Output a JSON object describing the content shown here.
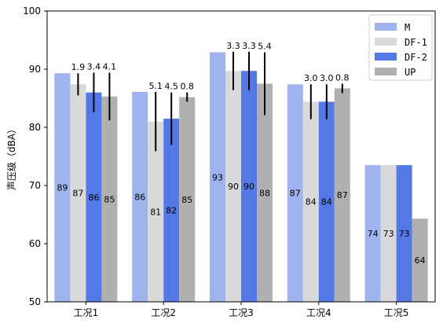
{
  "chart_data": {
    "type": "bar",
    "title": "",
    "xlabel": "",
    "ylabel": "声压级（dBA）",
    "ylim": [
      50,
      100
    ],
    "yticks": [
      50,
      60,
      70,
      80,
      90,
      100
    ],
    "categories": [
      "工况1",
      "工况2",
      "工况3",
      "工况4",
      "工况5"
    ],
    "legend_position": "top-right",
    "grid": false,
    "series": [
      {
        "name": "M",
        "color": "#9fb4ee",
        "values": [
          89.3,
          86.1,
          92.9,
          87.4,
          73.5
        ],
        "labels": [
          "89",
          "86",
          "93",
          "87",
          "74"
        ],
        "errors": [
          null,
          null,
          null,
          null,
          null
        ]
      },
      {
        "name": "DF-1",
        "color": "#d9d9d9",
        "values": [
          87.4,
          81.0,
          89.7,
          84.4,
          73.5
        ],
        "labels": [
          "87",
          "81",
          "90",
          "84",
          "73"
        ],
        "errors": [
          1.9,
          5.1,
          3.3,
          3.0,
          null
        ],
        "error_labels": [
          "1.9",
          "5.1",
          "3.3",
          "3.0",
          ""
        ]
      },
      {
        "name": "DF-2",
        "color": "#5379e6",
        "values": [
          86.0,
          81.5,
          89.7,
          84.4,
          73.5
        ],
        "labels": [
          "86",
          "82",
          "90",
          "84",
          "73"
        ],
        "errors": [
          3.4,
          4.5,
          3.3,
          3.0,
          null
        ],
        "error_labels": [
          "3.4",
          "4.5",
          "3.3",
          "3.0",
          ""
        ]
      },
      {
        "name": "UP",
        "color": "#b0b0b0",
        "values": [
          85.3,
          85.2,
          87.5,
          86.7,
          64.3
        ],
        "labels": [
          "85",
          "85",
          "88",
          "87",
          "64"
        ],
        "errors": [
          4.1,
          0.8,
          5.4,
          0.8,
          null
        ],
        "error_labels": [
          "4.1",
          "0.8",
          "5.4",
          "0.8",
          ""
        ]
      }
    ]
  }
}
